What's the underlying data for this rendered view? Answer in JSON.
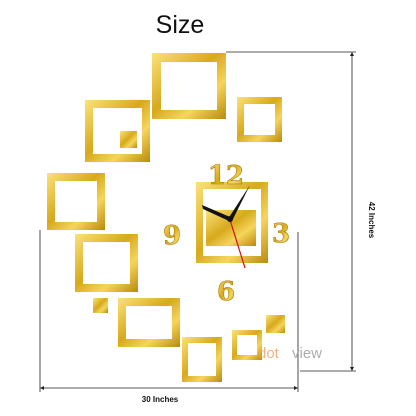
{
  "header": {
    "title": "Size"
  },
  "clock": {
    "numerals": [
      "12",
      "3",
      "6",
      "9"
    ]
  },
  "dimensions": {
    "height": "42 Inches",
    "width": "30 Inches"
  },
  "watermark": {
    "part1": "dot",
    "part2": "view"
  }
}
